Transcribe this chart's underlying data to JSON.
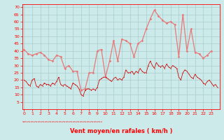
{
  "xlabel": "Vent moyen/en rafales ( km/h )",
  "bg_color": "#cceaea",
  "grid_color": "#aacccc",
  "line_color_gust": "#e87878",
  "line_color_avg": "#cc1111",
  "ylim": [
    0,
    72
  ],
  "yticks": [
    5,
    10,
    15,
    20,
    25,
    30,
    35,
    40,
    45,
    50,
    55,
    60,
    65,
    70
  ],
  "xlim": [
    -0.2,
    24
  ],
  "xticks": [
    0,
    1,
    2,
    3,
    4,
    5,
    6,
    7,
    8,
    9,
    10,
    11,
    12,
    13,
    14,
    15,
    16,
    17,
    18,
    19,
    20,
    21,
    22,
    23
  ],
  "gust_x": [
    0,
    0.5,
    1,
    1.5,
    2,
    2.5,
    3,
    3.5,
    4,
    4.5,
    5,
    5.5,
    6,
    6.5,
    7,
    7.5,
    8,
    8.5,
    9,
    9.5,
    10,
    10.5,
    11,
    11.5,
    12,
    12.5,
    13,
    13.5,
    14,
    14.5,
    15,
    15.5,
    16,
    16.5,
    17,
    17.5,
    18,
    18.5,
    19,
    19.5,
    20,
    20.5,
    21,
    21.5,
    22,
    22.5,
    23
  ],
  "gust_y": [
    41,
    38,
    37,
    38,
    39,
    37,
    34,
    33,
    37,
    36,
    28,
    30,
    26,
    26,
    13,
    14,
    25,
    25,
    40,
    41,
    22,
    33,
    47,
    33,
    48,
    47,
    45,
    36,
    45,
    47,
    55,
    62,
    68,
    64,
    61,
    59,
    60,
    58,
    36,
    65,
    40,
    55,
    39,
    38,
    35,
    37,
    40
  ],
  "avg_x": [
    0,
    0.25,
    0.5,
    0.75,
    1,
    1.25,
    1.5,
    1.75,
    2,
    2.25,
    2.5,
    2.75,
    3,
    3.25,
    3.5,
    3.75,
    4,
    4.25,
    4.5,
    4.75,
    5,
    5.25,
    5.5,
    5.75,
    6,
    6.25,
    6.5,
    6.75,
    7,
    7.25,
    7.5,
    7.75,
    8,
    8.25,
    8.5,
    8.75,
    9,
    9.25,
    9.5,
    9.75,
    10,
    10.25,
    10.5,
    10.75,
    11,
    11.25,
    11.5,
    11.75,
    12,
    12.25,
    12.5,
    12.75,
    13,
    13.25,
    13.5,
    13.75,
    14,
    14.25,
    14.5,
    14.75,
    15,
    15.25,
    15.5,
    15.75,
    16,
    16.25,
    16.5,
    16.75,
    17,
    17.25,
    17.5,
    17.75,
    18,
    18.25,
    18.5,
    18.75,
    19,
    19.25,
    19.5,
    19.75,
    20,
    20.25,
    20.5,
    20.75,
    21,
    21.25,
    21.5,
    21.75,
    22,
    22.25,
    22.5,
    22.75,
    23,
    23.25,
    23.5,
    23.75
  ],
  "avg_y": [
    20,
    19,
    17,
    16,
    20,
    21,
    16,
    15,
    17,
    16,
    18,
    17,
    17,
    16,
    18,
    17,
    19,
    22,
    17,
    16,
    17,
    16,
    15,
    14,
    18,
    17,
    16,
    14,
    10,
    9,
    13,
    14,
    14,
    13,
    14,
    13,
    15,
    20,
    21,
    22,
    22,
    21,
    20,
    19,
    21,
    22,
    20,
    21,
    20,
    22,
    27,
    25,
    25,
    26,
    24,
    26,
    25,
    28,
    26,
    25,
    25,
    30,
    33,
    30,
    28,
    32,
    30,
    29,
    30,
    28,
    31,
    29,
    28,
    30,
    29,
    28,
    22,
    20,
    25,
    27,
    26,
    24,
    22,
    21,
    24,
    22,
    21,
    20,
    18,
    17,
    19,
    20,
    18,
    16,
    17,
    15
  ],
  "wind_symbols": "vvvvvvvvvvvvvvvvvvvvvvvvvvvvvvvvvvvvvvvvvvvvvv"
}
